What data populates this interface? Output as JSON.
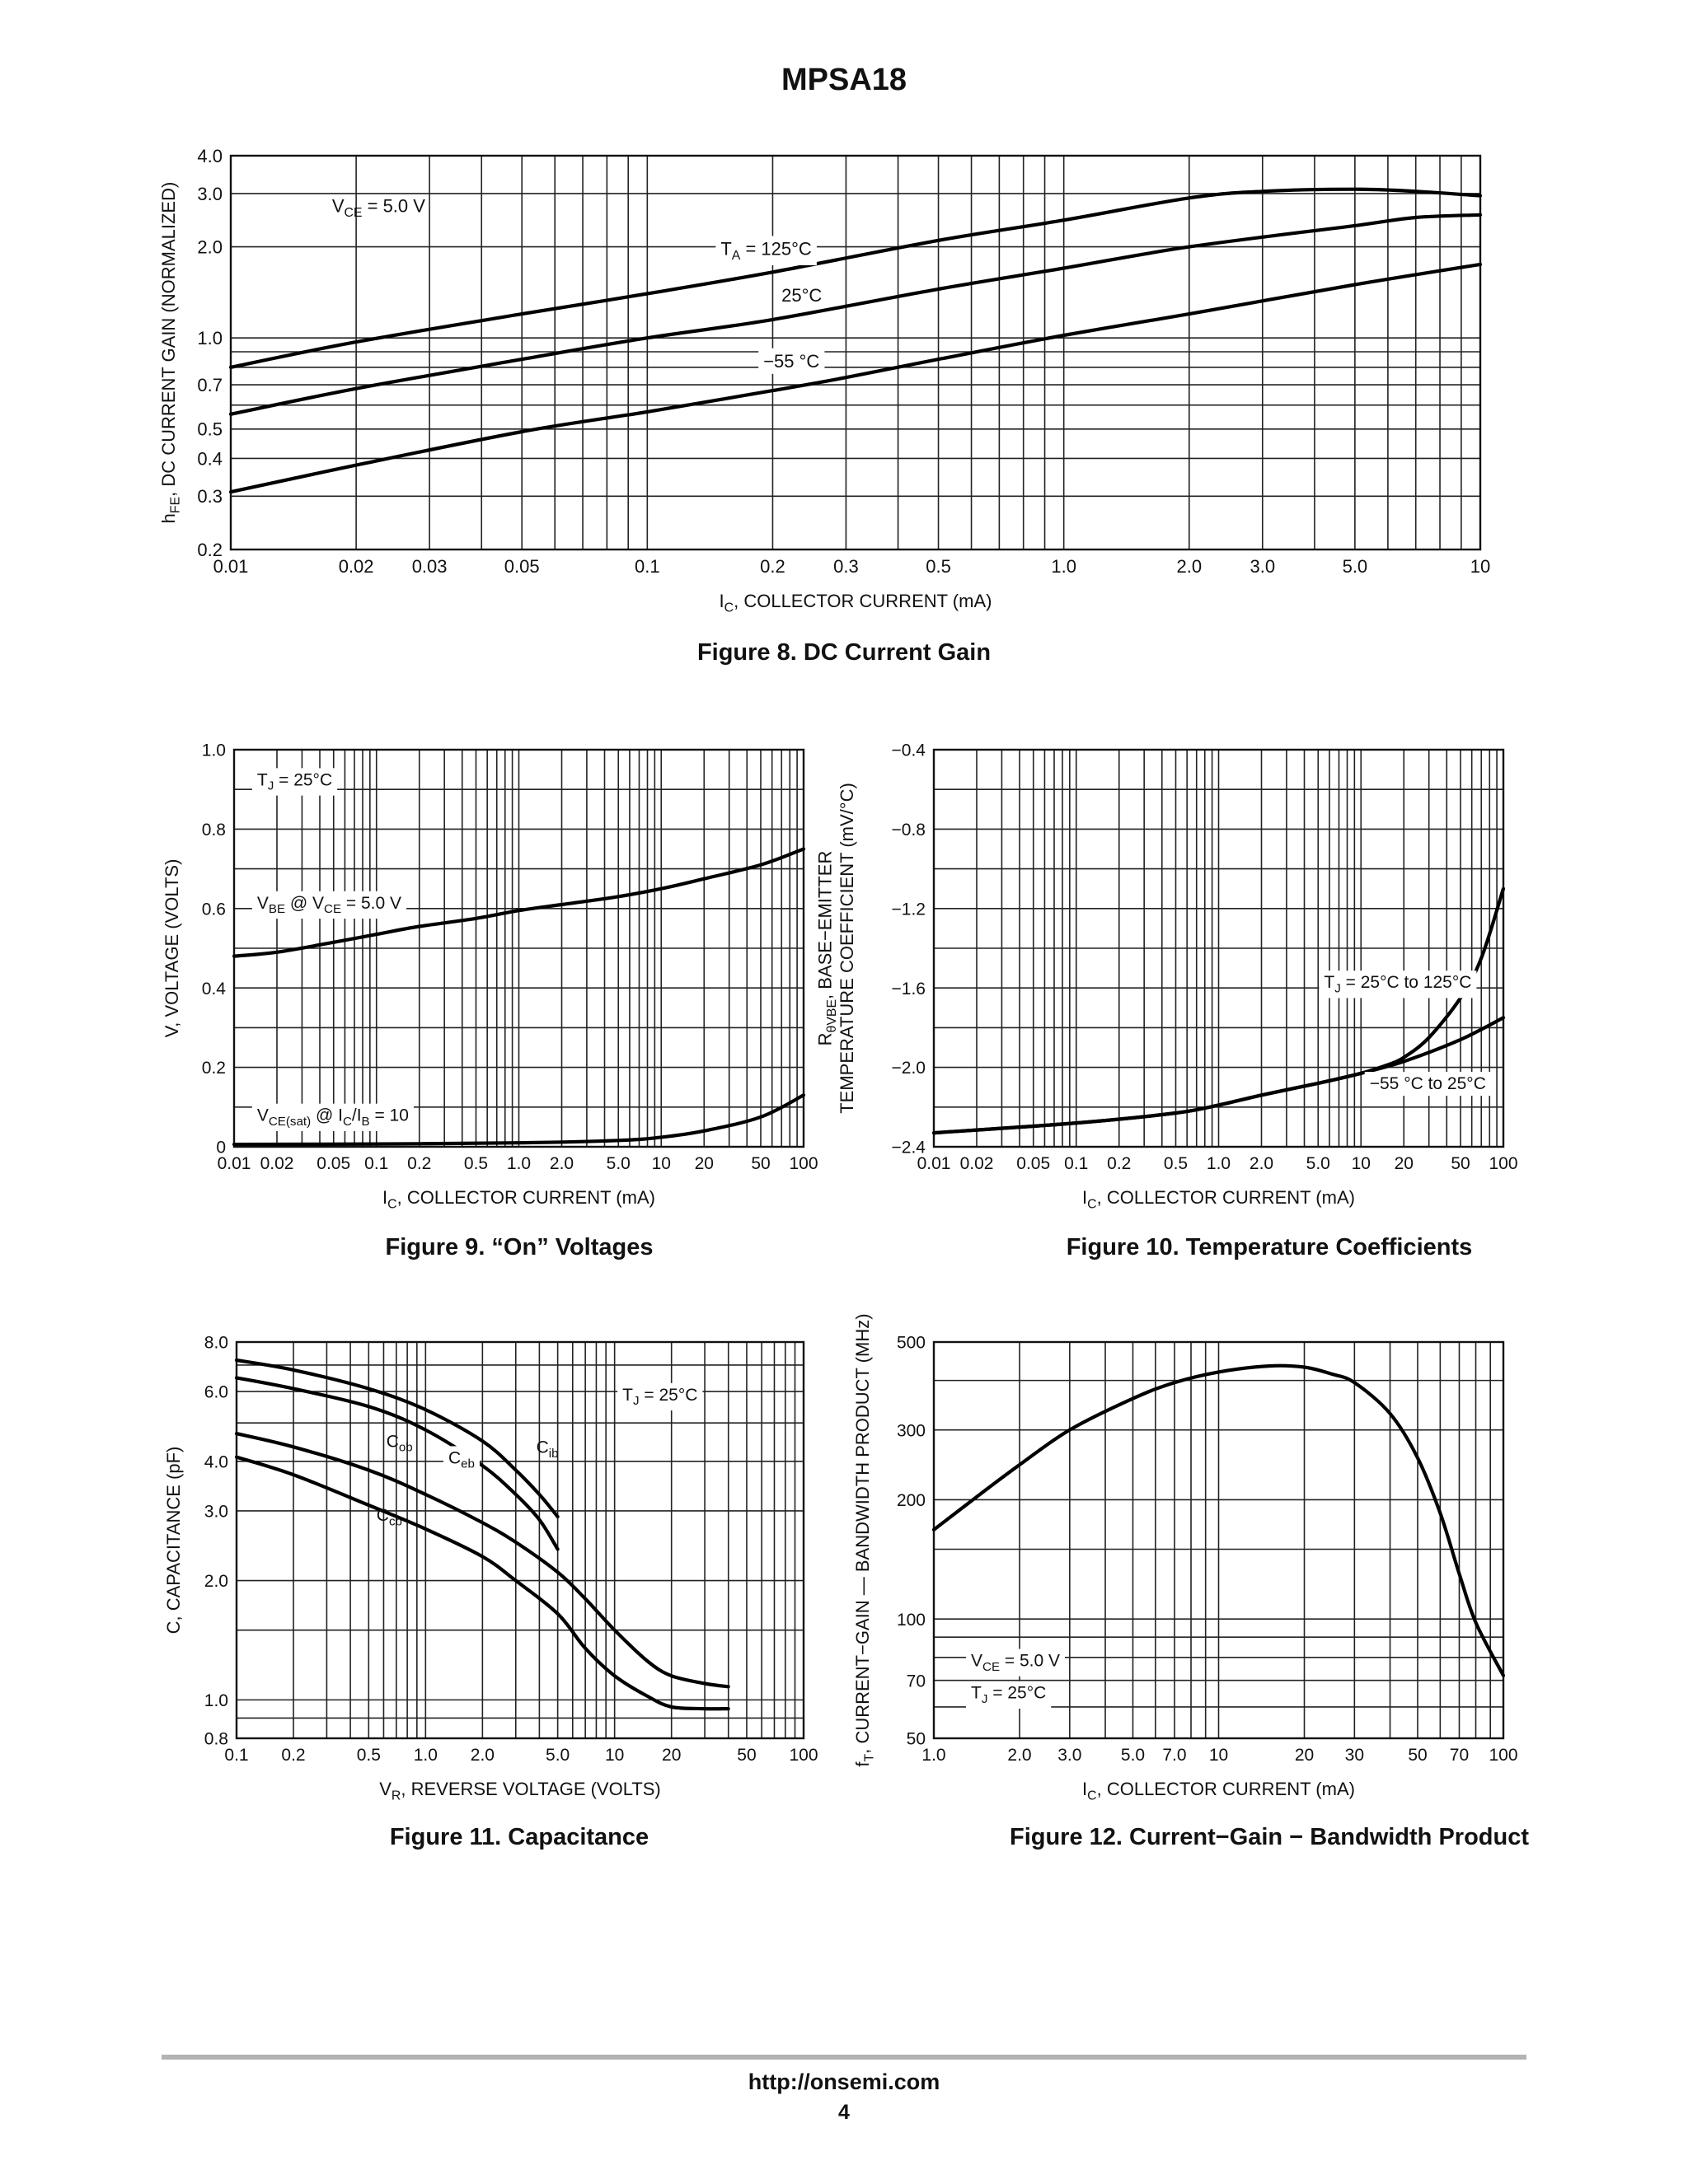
{
  "page": {
    "title": "MPSA18",
    "footer_url": "http://onsemi.com",
    "page_number": "4"
  },
  "chart_data": [
    {
      "id": "fig8",
      "type": "line",
      "caption": "Figure 8. DC Current Gain",
      "xlabel": "I_C, COLLECTOR CURRENT (mA)",
      "ylabel": "h_FE, DC CURRENT GAIN (NORMALIZED)",
      "xscale": "log",
      "yscale": "log",
      "xlim": [
        0.01,
        10
      ],
      "ylim": [
        0.2,
        4.0
      ],
      "xticks": [
        0.01,
        0.02,
        0.03,
        0.05,
        0.1,
        0.2,
        0.3,
        0.5,
        1.0,
        2.0,
        3.0,
        5.0,
        10
      ],
      "xtick_labels": [
        "0.01",
        "0.02",
        "0.03",
        "0.05",
        "0.1",
        "0.2",
        "0.3",
        "0.5",
        "1.0",
        "2.0",
        "3.0",
        "5.0",
        "10"
      ],
      "yticks": [
        0.2,
        0.3,
        0.4,
        0.5,
        0.7,
        1.0,
        2.0,
        3.0,
        4.0
      ],
      "ytick_labels": [
        "0.2",
        "0.3",
        "0.4",
        "0.5",
        "0.7",
        "1.0",
        "2.0",
        "3.0",
        "4.0"
      ],
      "grid_x": [
        0.01,
        0.02,
        0.03,
        0.04,
        0.05,
        0.06,
        0.07,
        0.08,
        0.09,
        0.1,
        0.2,
        0.3,
        0.4,
        0.5,
        0.6,
        0.7,
        0.8,
        0.9,
        1,
        2,
        3,
        4,
        5,
        6,
        7,
        8,
        9,
        10
      ],
      "grid_y": [
        0.2,
        0.3,
        0.4,
        0.5,
        0.6,
        0.7,
        0.8,
        0.9,
        1.0,
        2.0,
        3.0,
        4.0
      ],
      "series": [
        {
          "name": "",
          "x": [
            0.01,
            0.02,
            0.05,
            0.1,
            0.2,
            0.5,
            1.0,
            2.0,
            3.0,
            5.0,
            7.0,
            10
          ],
          "y": [
            0.8,
            0.97,
            1.2,
            1.4,
            1.65,
            2.1,
            2.45,
            2.9,
            3.05,
            3.1,
            3.05,
            2.95
          ]
        },
        {
          "name": "",
          "x": [
            0.01,
            0.02,
            0.05,
            0.1,
            0.2,
            0.5,
            1.0,
            2.0,
            5.0,
            7.0,
            10
          ],
          "y": [
            0.56,
            0.68,
            0.85,
            1.0,
            1.15,
            1.45,
            1.7,
            2.0,
            2.35,
            2.5,
            2.55
          ]
        },
        {
          "name": "",
          "x": [
            0.01,
            0.02,
            0.05,
            0.1,
            0.2,
            0.3,
            0.5,
            1.0,
            2.0,
            5.0,
            10
          ],
          "y": [
            0.31,
            0.38,
            0.49,
            0.57,
            0.67,
            0.74,
            0.85,
            1.02,
            1.2,
            1.5,
            1.75
          ]
        }
      ],
      "annotations": [
        {
          "text": "V",
          "sub": "CE",
          "rest": " = 5.0 V",
          "x": 0.0175,
          "y": 2.6,
          "box": false
        },
        {
          "text": "T",
          "sub": "A",
          "rest": " = 125°C",
          "x": 0.15,
          "y": 1.88,
          "box": true
        },
        {
          "text": "25°C",
          "sub": "",
          "rest": "",
          "x": 0.21,
          "y": 1.32,
          "box": false
        },
        {
          "text": "−55 °C",
          "sub": "",
          "rest": "",
          "x": 0.19,
          "y": 0.8,
          "box": true
        }
      ]
    },
    {
      "id": "fig9",
      "type": "line",
      "caption": "Figure 9. “On” Voltages",
      "xlabel": "I_C, COLLECTOR CURRENT (mA)",
      "ylabel": "V, VOLTAGE (VOLTS)",
      "xscale": "log",
      "yscale": "linear",
      "xlim": [
        0.01,
        100
      ],
      "ylim": [
        0,
        1.0
      ],
      "xticks": [
        0.01,
        0.02,
        0.05,
        0.1,
        0.2,
        0.5,
        1.0,
        2.0,
        5.0,
        10,
        20,
        50,
        100
      ],
      "xtick_labels": [
        "0.01",
        "0.02",
        "0.05",
        "0.1",
        "0.2",
        "0.5",
        "1.0",
        "2.0",
        "5.0",
        "10",
        "20",
        "50",
        "100"
      ],
      "yticks": [
        0,
        0.2,
        0.4,
        0.6,
        0.8,
        1.0
      ],
      "ytick_labels": [
        "0",
        "0.2",
        "0.4",
        "0.6",
        "0.8",
        "1.0"
      ],
      "grid_x": "decades",
      "grid_y": [
        0,
        0.1,
        0.2,
        0.3,
        0.4,
        0.5,
        0.6,
        0.7,
        0.8,
        0.9,
        1.0
      ],
      "series": [
        {
          "name": "",
          "x": [
            0.01,
            0.02,
            0.05,
            0.1,
            0.2,
            0.5,
            1,
            2,
            5,
            10,
            20,
            50,
            100
          ],
          "y": [
            0.48,
            0.49,
            0.515,
            0.535,
            0.555,
            0.575,
            0.595,
            0.61,
            0.63,
            0.65,
            0.675,
            0.71,
            0.75
          ]
        },
        {
          "name": "",
          "x": [
            0.01,
            0.1,
            1,
            5,
            10,
            20,
            50,
            100
          ],
          "y": [
            0.006,
            0.007,
            0.01,
            0.016,
            0.024,
            0.04,
            0.075,
            0.13
          ]
        }
      ],
      "annotations": [
        {
          "text": "T",
          "sub": "J",
          "rest": " = 25°C",
          "x": 0.0145,
          "y": 0.91,
          "box": true
        },
        {
          "text": "V",
          "sub": "BE",
          "rest": " @ V",
          "sub2": "CE",
          "rest2": " = 5.0 V",
          "x": 0.0145,
          "y": 0.6,
          "box": true
        },
        {
          "text": "V",
          "sub": "CE(sat)",
          "rest": " @ I",
          "sub2": "C",
          "rest2": "/I",
          "sub3": "B",
          "rest3": " = 10",
          "x": 0.0145,
          "y": 0.065,
          "box": true
        }
      ]
    },
    {
      "id": "fig10",
      "type": "line",
      "caption": "Figure 10. Temperature Coefficients",
      "xlabel": "I_C, COLLECTOR CURRENT (mA)",
      "ylabel_line1": "R_θVBE, BASE−EMITTER",
      "ylabel_line2": "TEMPERATURE COEFFICIENT (mV/°C)",
      "xscale": "log",
      "yscale": "linear",
      "xlim": [
        0.01,
        100
      ],
      "ylim": [
        -2.4,
        -0.4
      ],
      "xticks": [
        0.01,
        0.02,
        0.05,
        0.1,
        0.2,
        0.5,
        1.0,
        2.0,
        5.0,
        10,
        20,
        50,
        100
      ],
      "xtick_labels": [
        "0.01",
        "0.02",
        "0.05",
        "0.1",
        "0.2",
        "0.5",
        "1.0",
        "2.0",
        "5.0",
        "10",
        "20",
        "50",
        "100"
      ],
      "yticks": [
        -2.4,
        -2.0,
        -1.6,
        -1.2,
        -0.8,
        -0.4
      ],
      "ytick_labels": [
        "−2.4",
        "−2.0",
        "−1.6",
        "−1.2",
        "−0.8",
        "−0.4"
      ],
      "grid_x": "decades",
      "grid_y": [
        -2.4,
        -2.2,
        -2.0,
        -1.8,
        -1.6,
        -1.4,
        -1.2,
        -1.0,
        -0.8,
        -0.6,
        -0.4
      ],
      "series": [
        {
          "name": "",
          "x": [
            0.01,
            0.1,
            0.5,
            1,
            2,
            5,
            10,
            15,
            20,
            30,
            50,
            70,
            100
          ],
          "y": [
            -2.33,
            -2.28,
            -2.23,
            -2.19,
            -2.14,
            -2.08,
            -2.03,
            -1.99,
            -1.95,
            -1.85,
            -1.65,
            -1.45,
            -1.1
          ]
        },
        {
          "name": "",
          "x": [
            0.01,
            0.1,
            0.5,
            1,
            2,
            5,
            10,
            20,
            50,
            100
          ],
          "y": [
            -2.33,
            -2.28,
            -2.23,
            -2.19,
            -2.14,
            -2.08,
            -2.03,
            -1.97,
            -1.86,
            -1.75
          ]
        }
      ],
      "annotations": [
        {
          "text": "T",
          "sub": "J",
          "rest": " = 25°C to 125°C",
          "x": 5.5,
          "y": -1.6,
          "box": true
        },
        {
          "text": "−55 °C to 25°C",
          "sub": "",
          "rest": "",
          "x": 11.5,
          "y": -2.11,
          "box": true
        }
      ]
    },
    {
      "id": "fig11",
      "type": "line",
      "caption": "Figure 11. Capacitance",
      "xlabel": "V_R, REVERSE VOLTAGE (VOLTS)",
      "ylabel": "C, CAPACITANCE (pF)",
      "xscale": "log",
      "yscale": "log",
      "xlim": [
        0.1,
        100
      ],
      "ylim": [
        0.8,
        8.0
      ],
      "xticks": [
        0.1,
        0.2,
        0.5,
        1.0,
        2.0,
        5.0,
        10,
        20,
        50,
        100
      ],
      "xtick_labels": [
        "0.1",
        "0.2",
        "0.5",
        "1.0",
        "2.0",
        "5.0",
        "10",
        "20",
        "50",
        "100"
      ],
      "yticks": [
        0.8,
        1.0,
        2.0,
        3.0,
        4.0,
        6.0,
        8.0
      ],
      "ytick_labels": [
        "0.8",
        "1.0",
        "2.0",
        "3.0",
        "4.0",
        "6.0",
        "8.0"
      ],
      "grid_x": "decades",
      "grid_y": [
        0.8,
        0.9,
        1.0,
        1.5,
        2.0,
        3.0,
        4.0,
        5.0,
        6.0,
        7.0,
        8.0
      ],
      "series": [
        {
          "name": "",
          "x": [
            0.1,
            0.2,
            0.5,
            1.0,
            2.0,
            3.0,
            4.0,
            5.0
          ],
          "y": [
            7.2,
            6.8,
            6.1,
            5.4,
            4.5,
            3.8,
            3.3,
            2.9
          ]
        },
        {
          "name": "",
          "x": [
            0.1,
            0.2,
            0.5,
            1.0,
            2.0,
            3.0,
            4.0,
            5.0
          ],
          "y": [
            6.5,
            6.1,
            5.5,
            4.8,
            3.9,
            3.3,
            2.85,
            2.4
          ]
        },
        {
          "name": "",
          "x": [
            0.1,
            0.2,
            0.5,
            1.0,
            2.0,
            3.0,
            5.0,
            7.0,
            10,
            15,
            20,
            30,
            40
          ],
          "y": [
            4.7,
            4.35,
            3.8,
            3.3,
            2.8,
            2.5,
            2.1,
            1.8,
            1.5,
            1.25,
            1.15,
            1.1,
            1.08
          ]
        },
        {
          "name": "",
          "x": [
            0.1,
            0.2,
            0.5,
            1.0,
            2.0,
            3.0,
            5.0,
            7.0,
            10,
            15,
            20,
            30,
            40
          ],
          "y": [
            4.1,
            3.7,
            3.1,
            2.7,
            2.3,
            2.0,
            1.65,
            1.35,
            1.15,
            1.02,
            0.96,
            0.95,
            0.95
          ]
        }
      ],
      "annotations": [
        {
          "text": "T",
          "sub": "J",
          "rest": " = 25°C",
          "x": 11.0,
          "y": 5.7,
          "box": true
        },
        {
          "text": "C",
          "sub": "ob",
          "rest": "",
          "x": 0.62,
          "y": 4.35,
          "box": false
        },
        {
          "text": "C",
          "sub": "eb",
          "rest": "",
          "x": 1.32,
          "y": 3.95,
          "box": true
        },
        {
          "text": "C",
          "sub": "ib",
          "rest": "",
          "x": 3.85,
          "y": 4.2,
          "box": false
        },
        {
          "text": "C",
          "sub": "cb",
          "rest": "",
          "x": 0.55,
          "y": 2.83,
          "box": false
        }
      ]
    },
    {
      "id": "fig12",
      "type": "line",
      "caption": "Figure 12. Current−Gain − Bandwidth Product",
      "xlabel": "I_C, COLLECTOR CURRENT (mA)",
      "ylabel": "f_T, CURRENT−GAIN — BANDWIDTH PRODUCT (MHz)",
      "xscale": "log",
      "yscale": "log",
      "xlim": [
        1.0,
        100
      ],
      "ylim": [
        50,
        500
      ],
      "xticks": [
        1.0,
        2.0,
        3.0,
        5.0,
        7.0,
        10,
        20,
        30,
        50,
        70,
        100
      ],
      "xtick_labels": [
        "1.0",
        "2.0",
        "3.0",
        "5.0",
        "7.0",
        "10",
        "20",
        "30",
        "50",
        "70",
        "100"
      ],
      "yticks": [
        50,
        70,
        100,
        200,
        300,
        500
      ],
      "ytick_labels": [
        "50",
        "70",
        "100",
        "200",
        "300",
        "500"
      ],
      "grid_x": [
        1,
        2,
        3,
        4,
        5,
        6,
        7,
        8,
        9,
        10,
        20,
        30,
        40,
        50,
        60,
        70,
        80,
        90,
        100
      ],
      "grid_y": [
        50,
        60,
        70,
        80,
        90,
        100,
        150,
        200,
        300,
        400,
        500
      ],
      "series": [
        {
          "name": "",
          "x": [
            1.0,
            1.5,
            2.0,
            3.0,
            5.0,
            7.0,
            10,
            15,
            20,
            25,
            30,
            40,
            50,
            60,
            70,
            80,
            100
          ],
          "y": [
            168,
            210,
            245,
            300,
            360,
            395,
            420,
            435,
            432,
            415,
            395,
            330,
            255,
            185,
            130,
            98,
            72
          ]
        }
      ],
      "annotations": [
        {
          "text": "V",
          "sub": "CE",
          "rest": " = 5.0 V",
          "x": 1.35,
          "y": 76,
          "box": true
        },
        {
          "text": "T",
          "sub": "J",
          "rest": " = 25°C",
          "x": 1.35,
          "y": 63,
          "box": true
        }
      ]
    }
  ]
}
